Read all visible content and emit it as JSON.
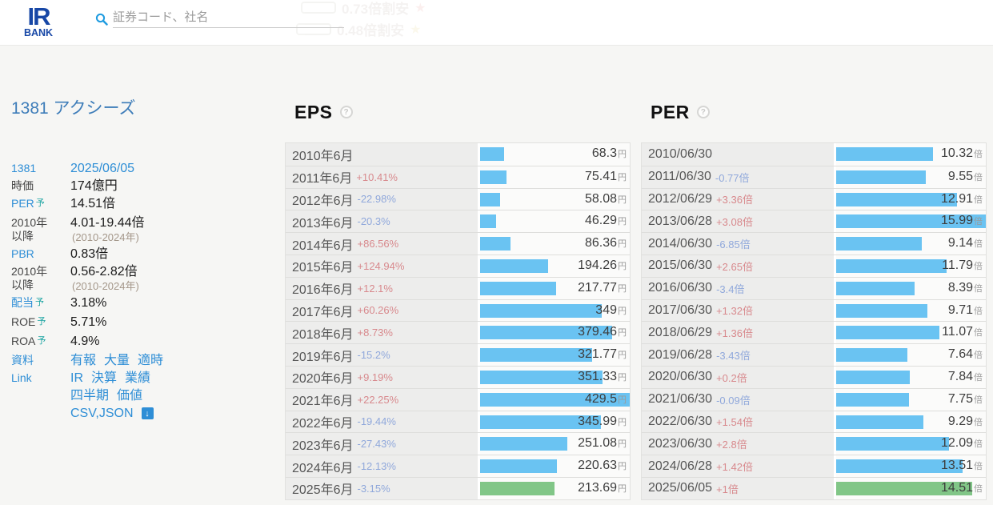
{
  "header": {
    "logo": {
      "top": "IR",
      "bottom": "BANK"
    },
    "search": {
      "placeholder": "証券コード、社名"
    },
    "ghost_rows": [
      {
        "text": "0.73倍割安",
        "star": "★"
      },
      {
        "text": "0.48倍割安",
        "star": "★"
      }
    ]
  },
  "sidebar": {
    "title": "1381 アクシーズ",
    "rows": [
      {
        "label": "1381",
        "label_style": "link",
        "value": "2025/06/05",
        "value_style": "link"
      },
      {
        "label": "時価",
        "value": "174億円"
      },
      {
        "label": "PER",
        "sup": "予",
        "label_style": "link",
        "value": "14.51倍"
      },
      {
        "label_lines": [
          "2010年",
          "以降"
        ],
        "value": "4.01-19.44倍",
        "note": "(2010-2024年)"
      },
      {
        "label": "PBR",
        "label_style": "link",
        "value": "0.83倍"
      },
      {
        "label_lines": [
          "2010年",
          "以降"
        ],
        "value": "0.56-2.82倍",
        "note": "(2010-2024年)"
      },
      {
        "label": "配当",
        "sup": "予",
        "label_style": "link",
        "value": "3.18%"
      },
      {
        "label": "ROE",
        "sup": "予",
        "value": "5.71%"
      },
      {
        "label": "ROA",
        "sup": "予",
        "value": "4.9%"
      },
      {
        "label": "資料",
        "label_style": "link",
        "links": [
          "有報",
          "大量",
          "適時"
        ]
      },
      {
        "label": "Link",
        "label_style": "link",
        "links": [
          "IR",
          "決算",
          "業績",
          "四半期",
          "価値"
        ]
      },
      {
        "label": "",
        "links": [
          "CSV,JSON"
        ],
        "icon": "download",
        "icon_glyph": "↓",
        "gap_top": true
      }
    ]
  },
  "chart_data": [
    {
      "type": "bar",
      "title": "EPS",
      "help_label": "?",
      "unit": "円",
      "ylim": [
        0,
        429.5
      ],
      "max": 429.5,
      "bar_color": "#6ac3f2",
      "forecast_color": "#81c687",
      "rows": [
        {
          "period": "2010年6月",
          "change": "",
          "value": 68.3,
          "display": "68.3"
        },
        {
          "period": "2011年6月",
          "change": "+10.41%",
          "value": 75.41,
          "display": "75.41"
        },
        {
          "period": "2012年6月",
          "change": "-22.98%",
          "value": 58.08,
          "display": "58.08"
        },
        {
          "period": "2013年6月",
          "change": "-20.3%",
          "value": 46.29,
          "display": "46.29"
        },
        {
          "period": "2014年6月",
          "change": "+86.56%",
          "value": 86.36,
          "display": "86.36"
        },
        {
          "period": "2015年6月",
          "change": "+124.94%",
          "value": 194.26,
          "display": "194.26"
        },
        {
          "period": "2016年6月",
          "change": "+12.1%",
          "value": 217.77,
          "display": "217.77"
        },
        {
          "period": "2017年6月",
          "change": "+60.26%",
          "value": 349,
          "display": "349"
        },
        {
          "period": "2018年6月",
          "change": "+8.73%",
          "value": 379.46,
          "display": "379.46"
        },
        {
          "period": "2019年6月",
          "change": "-15.2%",
          "value": 321.77,
          "display": "321.77"
        },
        {
          "period": "2020年6月",
          "change": "+9.19%",
          "value": 351.33,
          "display": "351.33"
        },
        {
          "period": "2021年6月",
          "change": "+22.25%",
          "value": 429.5,
          "display": "429.5"
        },
        {
          "period": "2022年6月",
          "change": "-19.44%",
          "value": 345.99,
          "display": "345.99"
        },
        {
          "period": "2023年6月",
          "change": "-27.43%",
          "value": 251.08,
          "display": "251.08"
        },
        {
          "period": "2024年6月",
          "change": "-12.13%",
          "value": 220.63,
          "display": "220.63"
        },
        {
          "period": "2025年6月",
          "change": "-3.15%",
          "value": 213.69,
          "display": "213.69",
          "forecast": true
        }
      ]
    },
    {
      "type": "bar",
      "title": "PER",
      "help_label": "?",
      "unit": "倍",
      "ylim": [
        0,
        15.99
      ],
      "max": 15.99,
      "bar_color": "#6ac3f2",
      "forecast_color": "#81c687",
      "rows": [
        {
          "period": "2010/06/30",
          "change": "",
          "value": 10.32,
          "display": "10.32"
        },
        {
          "period": "2011/06/30",
          "change": "-0.77倍",
          "value": 9.55,
          "display": "9.55"
        },
        {
          "period": "2012/06/29",
          "change": "+3.36倍",
          "value": 12.91,
          "display": "12.91"
        },
        {
          "period": "2013/06/28",
          "change": "+3.08倍",
          "value": 15.99,
          "display": "15.99"
        },
        {
          "period": "2014/06/30",
          "change": "-6.85倍",
          "value": 9.14,
          "display": "9.14"
        },
        {
          "period": "2015/06/30",
          "change": "+2.65倍",
          "value": 11.79,
          "display": "11.79"
        },
        {
          "period": "2016/06/30",
          "change": "-3.4倍",
          "value": 8.39,
          "display": "8.39"
        },
        {
          "period": "2017/06/30",
          "change": "+1.32倍",
          "value": 9.71,
          "display": "9.71"
        },
        {
          "period": "2018/06/29",
          "change": "+1.36倍",
          "value": 11.07,
          "display": "11.07"
        },
        {
          "period": "2019/06/28",
          "change": "-3.43倍",
          "value": 7.64,
          "display": "7.64"
        },
        {
          "period": "2020/06/30",
          "change": "+0.2倍",
          "value": 7.84,
          "display": "7.84"
        },
        {
          "period": "2021/06/30",
          "change": "-0.09倍",
          "value": 7.75,
          "display": "7.75"
        },
        {
          "period": "2022/06/30",
          "change": "+1.54倍",
          "value": 9.29,
          "display": "9.29"
        },
        {
          "period": "2023/06/30",
          "change": "+2.8倍",
          "value": 12.09,
          "display": "12.09"
        },
        {
          "period": "2024/06/28",
          "change": "+1.42倍",
          "value": 13.51,
          "display": "13.51"
        },
        {
          "period": "2025/06/05",
          "change": "+1倍",
          "value": 14.51,
          "display": "14.51",
          "forecast": true
        }
      ]
    }
  ]
}
